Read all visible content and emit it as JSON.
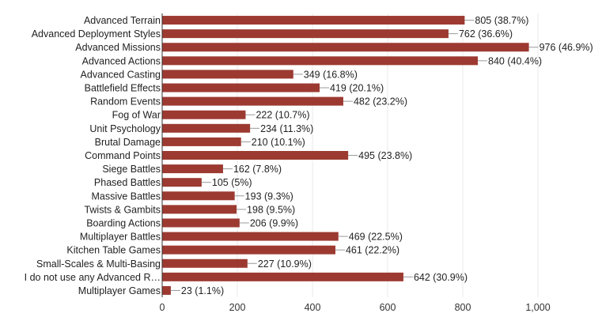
{
  "chart_data": {
    "type": "bar",
    "orientation": "horizontal",
    "bar_color": "#9c3a31",
    "categories": [
      "Advanced Terrain",
      "Advanced Deployment Styles",
      "Advanced Missions",
      "Advanced Actions",
      "Advanced Casting",
      "Battlefield Effects",
      "Random Events",
      "Fog of War",
      "Unit Psychology",
      "Brutal Damage",
      "Command Points",
      "Siege Battles",
      "Phased Battles",
      "Massive Battles",
      "Twists & Gambits",
      "Boarding Actions",
      "Multiplayer Battles",
      "Kitchen Table Games",
      "Small-Scales & Multi-Basing",
      "I do not use any Advanced R…",
      "Multiplayer Games"
    ],
    "values": [
      805,
      762,
      976,
      840,
      349,
      419,
      482,
      222,
      234,
      210,
      495,
      162,
      105,
      193,
      198,
      206,
      469,
      461,
      227,
      642,
      23
    ],
    "data_labels": [
      "805 (38.7%)",
      "762 (36.6%)",
      "976 (46.9%)",
      "840 (40.4%)",
      "349 (16.8%)",
      "419 (20.1%)",
      "482 (23.2%)",
      "222 (10.7%)",
      "234 (11.3%)",
      "210 (10.1%)",
      "495 (23.8%)",
      "162 (7.8%)",
      "105 (5%)",
      "193 (9.3%)",
      "198 (9.5%)",
      "206 (9.9%)",
      "469 (22.5%)",
      "461 (22.2%)",
      "227 (10.9%)",
      "642 (30.9%)",
      "23 (1.1%)"
    ],
    "xlim": [
      0,
      1000
    ],
    "xticks": [
      0,
      200,
      400,
      600,
      800,
      1000
    ],
    "xtick_labels": [
      "0",
      "200",
      "400",
      "600",
      "800",
      "1,000"
    ],
    "grid": true,
    "legend": "none"
  }
}
